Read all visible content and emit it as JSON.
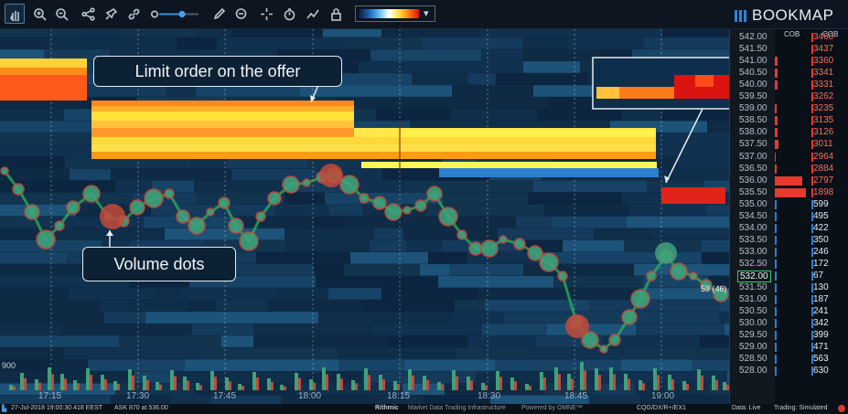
{
  "app": {
    "logo_text": "BOOKMAP",
    "accent": "#2d84d6"
  },
  "toolbar": {
    "icons": [
      "pan-hand-icon",
      "zoom-in-icon",
      "zoom-out-icon",
      "share-icon",
      "pin-icon",
      "link-icon",
      "slider-icon",
      "pencil-icon",
      "chat-icon",
      "crosshair-icon",
      "timer-icon",
      "indicator-icon",
      "lock-icon",
      "colormap-icon"
    ],
    "colormap_dropdown": "▾"
  },
  "price_axis": {
    "labels": [
      "542.00",
      "541.50",
      "541.00",
      "540.50",
      "540.00",
      "539.50",
      "539.00",
      "538.50",
      "538.00",
      "537.50",
      "537.00",
      "536.50",
      "536.00",
      "535.50",
      "535.00",
      "534.50",
      "534.00",
      "533.50",
      "533.00",
      "532.50",
      "532.00",
      "531.50",
      "531.00",
      "530.50",
      "530.00",
      "529.50",
      "529.00",
      "528.50",
      "528.00"
    ],
    "current_price": "532.00",
    "current_marker": "59 (46)"
  },
  "cob": {
    "header1": "COB",
    "header2": "COB",
    "values": [
      "3460",
      "3437",
      "3360",
      "3341",
      "3331",
      "3262",
      "3235",
      "3135",
      "3126",
      "3011",
      "2964",
      "2884",
      "2797",
      "1898",
      "599",
      "495",
      "422",
      "350",
      "246",
      "172",
      "67",
      "130",
      "187",
      "241",
      "342",
      "399",
      "471",
      "563",
      "630"
    ]
  },
  "time_axis": {
    "labels": [
      "17:15",
      "17:30",
      "17:45",
      "18:00",
      "18:15",
      "18:30",
      "18:45",
      "19:00"
    ]
  },
  "volume_label": "900",
  "callouts": {
    "limit_order": "Limit order on the offer",
    "volume_dots": "Volume dots"
  },
  "status_bar": {
    "datetime": "27-Jul-2018 19:00:30.418 EEST",
    "quote": "ASK 870 at 536.00",
    "provider": "Rithmic",
    "provider_tagline": "Market Data Trading Infrastructure",
    "powered_by": "Powered by OMNE™",
    "connection": "CQG/DX/R+/EX1",
    "data_status": "Data: Live",
    "trading_status": "Trading: Simulated"
  }
}
